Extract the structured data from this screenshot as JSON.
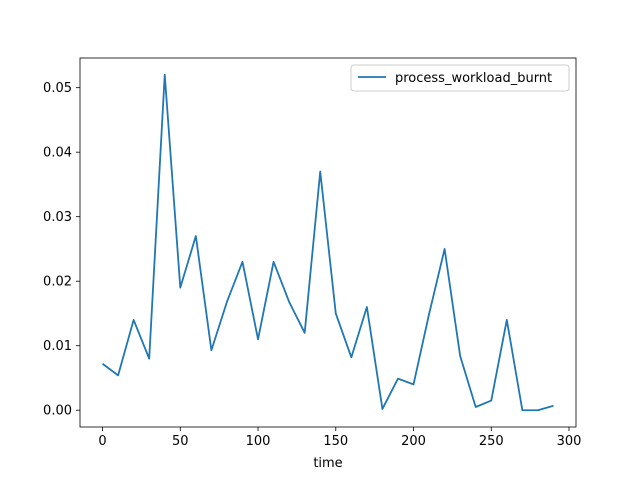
{
  "chart_data": {
    "type": "line",
    "xlabel": "time",
    "ylabel": "",
    "xlim": [
      -14.5,
      304.5
    ],
    "ylim": [
      -0.0026,
      0.0546
    ],
    "xticks": [
      0,
      50,
      100,
      150,
      200,
      250,
      300
    ],
    "xtick_labels": [
      "0",
      "50",
      "100",
      "150",
      "200",
      "250",
      "300"
    ],
    "yticks": [
      0.0,
      0.01,
      0.02,
      0.03,
      0.04,
      0.05
    ],
    "ytick_labels": [
      "0.00",
      "0.01",
      "0.02",
      "0.03",
      "0.04",
      "0.05"
    ],
    "legend_position": "top-right",
    "grid": false,
    "series": [
      {
        "name": "process_workload_burnt",
        "color": "#1f77b4",
        "x": [
          0,
          10,
          20,
          30,
          40,
          50,
          60,
          70,
          80,
          90,
          100,
          110,
          120,
          130,
          140,
          150,
          160,
          170,
          180,
          190,
          200,
          210,
          220,
          230,
          240,
          250,
          260,
          270,
          280,
          290
        ],
        "y": [
          0.0072,
          0.0054,
          0.014,
          0.008,
          0.052,
          0.019,
          0.027,
          0.0093,
          0.0168,
          0.023,
          0.011,
          0.023,
          0.0168,
          0.012,
          0.037,
          0.015,
          0.0082,
          0.016,
          0.0002,
          0.0049,
          0.004,
          0.0149,
          0.025,
          0.0084,
          0.0005,
          0.0015,
          0.014,
          0.0,
          0.0,
          0.0007
        ]
      }
    ]
  }
}
